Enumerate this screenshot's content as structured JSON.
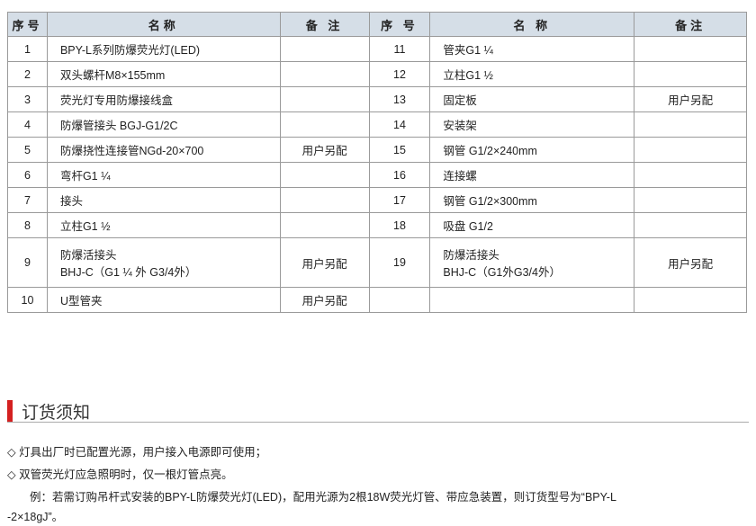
{
  "table": {
    "headers": [
      "序号",
      "名称",
      "备 注",
      "序 号",
      "名 称",
      "备注"
    ],
    "rows": [
      {
        "l_no": "1",
        "l_name": "BPY-L系列防爆荧光灯(LED)",
        "l_note": "",
        "r_no": "11",
        "r_name": "管夹G1 ¼",
        "r_note": ""
      },
      {
        "l_no": "2",
        "l_name": "双头螺杆M8×155mm",
        "l_note": "",
        "r_no": "12",
        "r_name": "立柱G1 ½",
        "r_note": ""
      },
      {
        "l_no": "3",
        "l_name": "荧光灯专用防爆接线盒",
        "l_note": "",
        "r_no": "13",
        "r_name": "固定板",
        "r_note": "用户另配"
      },
      {
        "l_no": "4",
        "l_name": "防爆管接头 BGJ-G1/2C",
        "l_note": "",
        "r_no": "14",
        "r_name": "安装架",
        "r_note": ""
      },
      {
        "l_no": "5",
        "l_name": "防爆挠性连接管NGd-20×700",
        "l_note": "用户另配",
        "r_no": "15",
        "r_name": "钢管 G1/2×240mm",
        "r_note": ""
      },
      {
        "l_no": "6",
        "l_name": "弯杆G1 ¼",
        "l_note": "",
        "r_no": "16",
        "r_name": "连接螺",
        "r_note": ""
      },
      {
        "l_no": "7",
        "l_name": "接头",
        "l_note": "",
        "r_no": "17",
        "r_name": "钢管 G1/2×300mm",
        "r_note": ""
      },
      {
        "l_no": "8",
        "l_name": "立柱G1 ½",
        "l_note": "",
        "r_no": "18",
        "r_name": "吸盘 G1/2",
        "r_note": ""
      },
      {
        "l_no": "9",
        "l_name": "防爆活接头",
        "l_name2": "BHJ-C（G1 ¼ 外 G3/4外）",
        "l_note": "用户另配",
        "r_no": "19",
        "r_name": "防爆活接头",
        "r_name2": "BHJ-C（G1外G3/4外）",
        "r_note": "用户另配"
      },
      {
        "l_no": "10",
        "l_name": "U型管夹",
        "l_note": "用户另配",
        "r_no": "",
        "r_name": "",
        "r_note": ""
      }
    ]
  },
  "section": {
    "title": "订货须知",
    "accent": "#d42020"
  },
  "notes": [
    "◇ 灯具出厂时已配置光源，用户接入电源即可使用；",
    "◇ 双管荧光灯应急照明时，仅一根灯管点亮。",
    "　　例：若需订购吊杆式安装的BPY-L防爆荧光灯(LED)，配用光源为2根18W荧光灯管、带应急装置，则订货型号为“BPY-L",
    "-2×18gJ”。"
  ]
}
